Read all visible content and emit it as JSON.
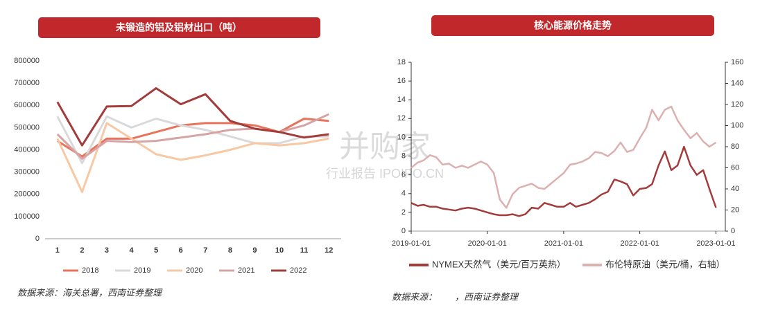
{
  "chart_data": [
    {
      "type": "line",
      "title": "未锻造的铝及铝材出口（吨）",
      "source": "数据来源：海关总署，西南证券整理",
      "categories": [
        "1",
        "2",
        "3",
        "4",
        "5",
        "6",
        "7",
        "8",
        "9",
        "10",
        "11",
        "12"
      ],
      "ylim": [
        0,
        800000
      ],
      "yticks": [
        0,
        100000,
        200000,
        300000,
        400000,
        500000,
        600000,
        700000,
        800000
      ],
      "grid": false,
      "legend": "bottom",
      "series": [
        {
          "name": "2018",
          "color": "#e8735a",
          "values": [
            440000,
            370000,
            450000,
            450000,
            480000,
            510000,
            520000,
            520000,
            510000,
            480000,
            540000,
            530000
          ]
        },
        {
          "name": "2019",
          "color": "#d9d9d9",
          "values": [
            550000,
            340000,
            550000,
            500000,
            540000,
            510000,
            490000,
            460000,
            430000,
            430000,
            460000,
            460000
          ]
        },
        {
          "name": "2020",
          "color": "#f7c8a4",
          "values": [
            450000,
            210000,
            520000,
            450000,
            380000,
            355000,
            375000,
            400000,
            430000,
            420000,
            430000,
            450000
          ]
        },
        {
          "name": "2021",
          "color": "#d6a4a4",
          "values": [
            470000,
            360000,
            440000,
            435000,
            440000,
            455000,
            470000,
            490000,
            495000,
            480000,
            510000,
            560000
          ]
        },
        {
          "name": "2022",
          "color": "#a33b3b",
          "values": [
            615000,
            420000,
            595000,
            597000,
            677000,
            605000,
            650000,
            530000,
            495000,
            480000,
            455000,
            470000
          ]
        }
      ]
    },
    {
      "type": "line",
      "title": "核心能源价格走势",
      "source": "数据来源：　　，西南证券整理",
      "x": [
        "2019-01-01",
        "2019-02-01",
        "2019-03-01",
        "2019-04-01",
        "2019-05-01",
        "2019-06-01",
        "2019-07-01",
        "2019-08-01",
        "2019-09-01",
        "2019-10-01",
        "2019-11-01",
        "2019-12-01",
        "2020-01-01",
        "2020-02-01",
        "2020-03-01",
        "2020-04-01",
        "2020-05-01",
        "2020-06-01",
        "2020-07-01",
        "2020-08-01",
        "2020-09-01",
        "2020-10-01",
        "2020-11-01",
        "2020-12-01",
        "2021-01-01",
        "2021-02-01",
        "2021-03-01",
        "2021-04-01",
        "2021-05-01",
        "2021-06-01",
        "2021-07-01",
        "2021-08-01",
        "2021-09-01",
        "2021-10-01",
        "2021-11-01",
        "2021-12-01",
        "2022-01-01",
        "2022-02-01",
        "2022-03-01",
        "2022-04-01",
        "2022-05-01",
        "2022-06-01",
        "2022-07-01",
        "2022-08-01",
        "2022-09-01",
        "2022-10-01",
        "2022-11-01",
        "2022-12-01",
        "2023-01-01"
      ],
      "xlim": [
        "2019-01-01",
        "2023-02-15"
      ],
      "xticks": [
        "2019-01-01",
        "2020-01-01",
        "2021-01-01",
        "2022-01-01",
        "2023-01-01"
      ],
      "ylim": [
        0,
        18
      ],
      "yticks": [
        0,
        2,
        4,
        6,
        8,
        10,
        12,
        14,
        16,
        18
      ],
      "y2lim": [
        0,
        160
      ],
      "y2ticks": [
        0,
        20,
        40,
        60,
        80,
        100,
        120,
        140,
        160
      ],
      "legend": "bottom",
      "series": [
        {
          "name": "NYMEX天然气（美元/百万英热）",
          "color": "#a33b3b",
          "values": [
            3.0,
            2.7,
            2.8,
            2.6,
            2.6,
            2.4,
            2.3,
            2.2,
            2.4,
            2.5,
            2.4,
            2.2,
            2.0,
            1.8,
            1.7,
            1.7,
            1.8,
            1.6,
            1.8,
            2.5,
            2.4,
            3.0,
            2.8,
            2.6,
            2.6,
            3.0,
            2.6,
            2.8,
            3.0,
            3.4,
            3.9,
            4.2,
            5.5,
            5.3,
            5.0,
            3.8,
            4.5,
            4.6,
            5.0,
            7.0,
            8.5,
            6.5,
            7.0,
            9.0,
            7.0,
            6.0,
            6.5,
            4.5,
            2.5
          ]
        },
        {
          "name": "布伦特原油（美元/桶，右轴）",
          "color": "#ddb0b0",
          "axis": "y2",
          "values": [
            60,
            65,
            67,
            72,
            70,
            63,
            64,
            60,
            62,
            60,
            63,
            66,
            63,
            55,
            30,
            22,
            35,
            41,
            43,
            45,
            41,
            40,
            45,
            50,
            55,
            63,
            64,
            66,
            69,
            75,
            74,
            71,
            76,
            84,
            75,
            77,
            88,
            98,
            115,
            105,
            115,
            118,
            105,
            96,
            88,
            93,
            85,
            80,
            84
          ]
        }
      ]
    }
  ],
  "watermark": {
    "brand": "并购家",
    "sub": "行业报告 IPOIPO.CN"
  }
}
